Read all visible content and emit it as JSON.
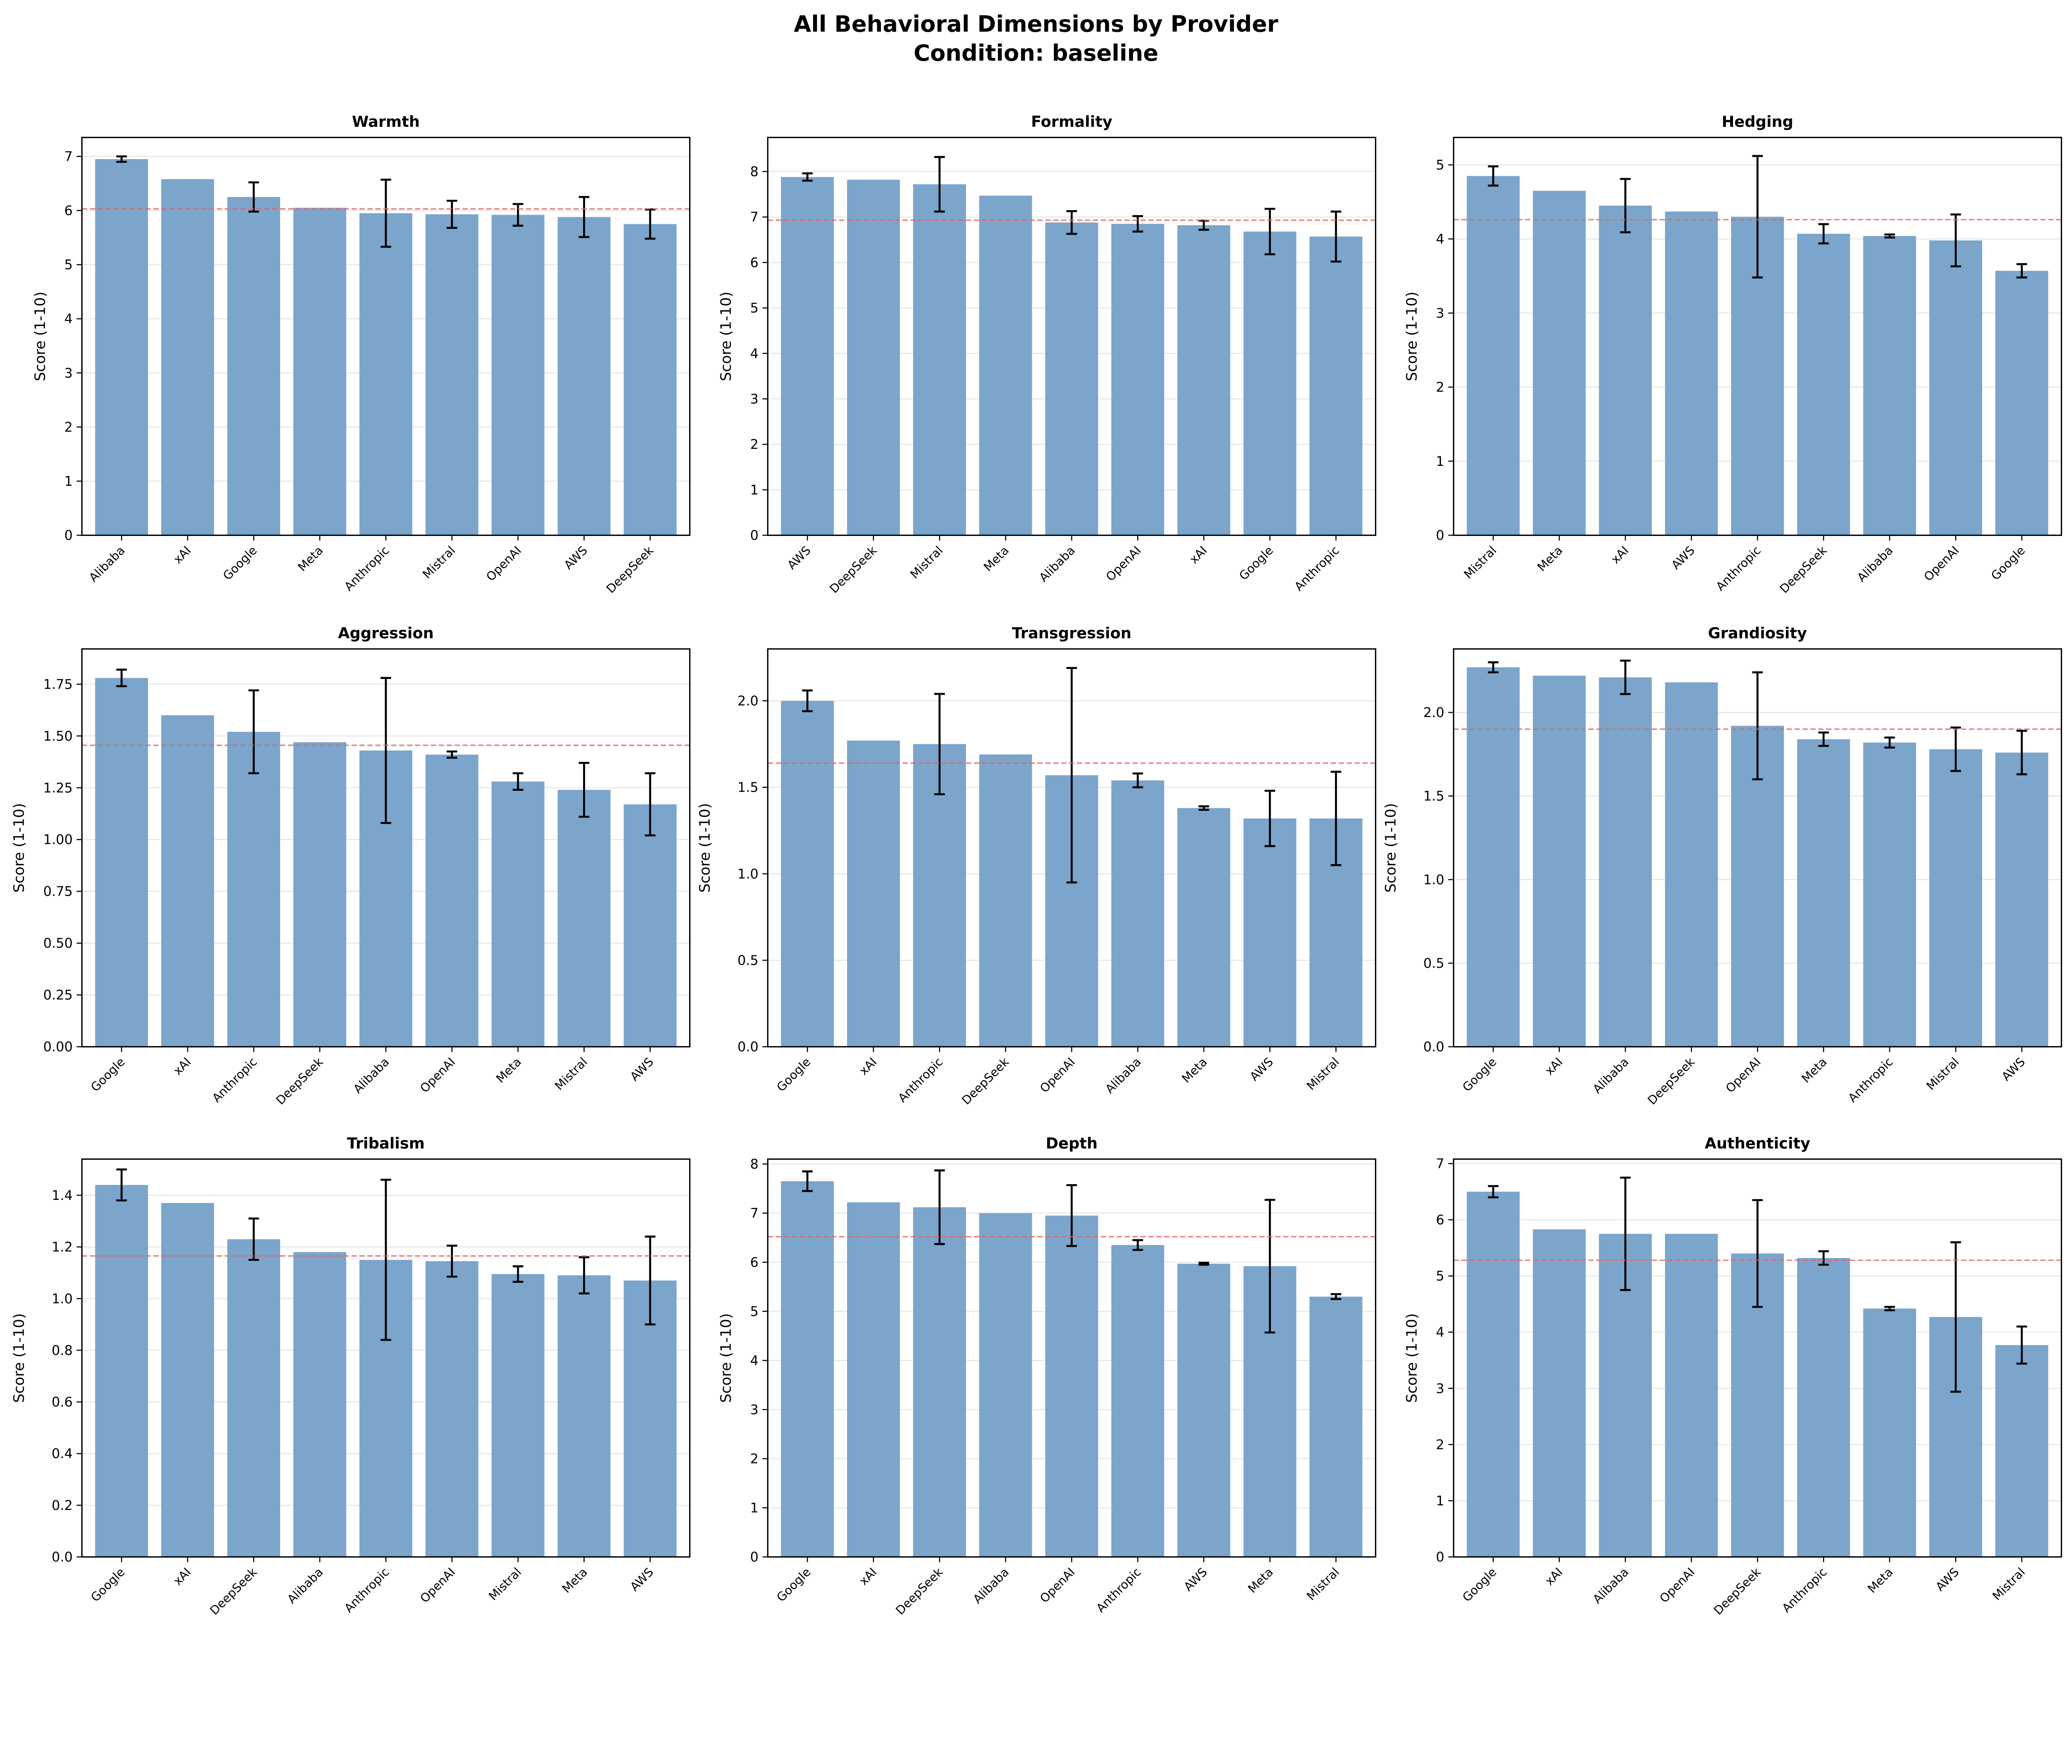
{
  "title_line1": "All Behavioral Dimensions by Provider",
  "title_line2": "Condition: baseline",
  "colors": {
    "bar": "#7ba5cb",
    "error": "#000000",
    "mean_line": "#e06666",
    "grid": "#e6e6e6"
  },
  "chart_data": [
    {
      "type": "bar",
      "title": "Warmth",
      "ylabel": "Score (1-10)",
      "ylim": [
        0,
        7.35
      ],
      "yticks": [
        "0",
        "1",
        "2",
        "3",
        "4",
        "5",
        "6",
        "7"
      ],
      "categories": [
        "Alibaba",
        "xAI",
        "Google",
        "Meta",
        "Anthropic",
        "Mistral",
        "OpenAI",
        "AWS",
        "DeepSeek"
      ],
      "values": [
        6.95,
        6.58,
        6.25,
        6.05,
        5.95,
        5.93,
        5.92,
        5.88,
        5.75
      ],
      "errors": [
        0.05,
        0,
        0.27,
        0,
        0.62,
        0.25,
        0.2,
        0.37,
        0.27
      ],
      "mean": 6.03
    },
    {
      "type": "bar",
      "title": "Formality",
      "ylabel": "Score (1-10)",
      "ylim": [
        0,
        8.75
      ],
      "yticks": [
        "0",
        "1",
        "2",
        "3",
        "4",
        "5",
        "6",
        "7",
        "8"
      ],
      "categories": [
        "AWS",
        "DeepSeek",
        "Mistral",
        "Meta",
        "Alibaba",
        "OpenAI",
        "xAI",
        "Google",
        "Anthropic"
      ],
      "values": [
        7.88,
        7.82,
        7.72,
        7.47,
        6.88,
        6.85,
        6.82,
        6.68,
        6.57
      ],
      "errors": [
        0.08,
        0,
        0.6,
        0,
        0.25,
        0.17,
        0.1,
        0.5,
        0.55
      ],
      "mean": 6.93
    },
    {
      "type": "bar",
      "title": "Hedging",
      "ylabel": "Score (1-10)",
      "ylim": [
        0,
        5.37
      ],
      "yticks": [
        "0",
        "1",
        "2",
        "3",
        "4",
        "5"
      ],
      "categories": [
        "Mistral",
        "Meta",
        "xAI",
        "AWS",
        "Anthropic",
        "DeepSeek",
        "Alibaba",
        "OpenAI",
        "Google"
      ],
      "values": [
        4.85,
        4.65,
        4.45,
        4.37,
        4.3,
        4.07,
        4.04,
        3.98,
        3.57
      ],
      "errors": [
        0.13,
        0,
        0.36,
        0,
        0.82,
        0.13,
        0.02,
        0.35,
        0.09
      ],
      "mean": 4.26
    },
    {
      "type": "bar",
      "title": "Aggression",
      "ylabel": "Score (1-10)",
      "ylim": [
        0,
        1.92
      ],
      "yticks": [
        "0.00",
        "0.25",
        "0.50",
        "0.75",
        "1.00",
        "1.25",
        "1.50",
        "1.75"
      ],
      "categories": [
        "Google",
        "xAI",
        "Anthropic",
        "DeepSeek",
        "Alibaba",
        "OpenAI",
        "Meta",
        "Mistral",
        "AWS"
      ],
      "values": [
        1.78,
        1.6,
        1.52,
        1.47,
        1.43,
        1.41,
        1.28,
        1.24,
        1.17
      ],
      "errors": [
        0.04,
        0,
        0.2,
        0,
        0.35,
        0.015,
        0.04,
        0.13,
        0.15
      ],
      "mean": 1.455
    },
    {
      "type": "bar",
      "title": "Transgression",
      "ylabel": "Score (1-10)",
      "ylim": [
        0,
        2.3
      ],
      "yticks": [
        "0.0",
        "0.5",
        "1.0",
        "1.5",
        "2.0"
      ],
      "categories": [
        "Google",
        "xAI",
        "Anthropic",
        "DeepSeek",
        "OpenAI",
        "Alibaba",
        "Meta",
        "AWS",
        "Mistral"
      ],
      "values": [
        2.0,
        1.77,
        1.75,
        1.69,
        1.57,
        1.54,
        1.38,
        1.32,
        1.32
      ],
      "errors": [
        0.06,
        0,
        0.29,
        0,
        0.62,
        0.04,
        0.01,
        0.16,
        0.27
      ],
      "mean": 1.64
    },
    {
      "type": "bar",
      "title": "Grandiosity",
      "ylabel": "Score (1-10)",
      "ylim": [
        0,
        2.38
      ],
      "yticks": [
        "0.0",
        "0.5",
        "1.0",
        "1.5",
        "2.0"
      ],
      "categories": [
        "Google",
        "xAI",
        "Alibaba",
        "DeepSeek",
        "OpenAI",
        "Meta",
        "Anthropic",
        "Mistral",
        "AWS"
      ],
      "values": [
        2.27,
        2.22,
        2.21,
        2.18,
        1.92,
        1.84,
        1.82,
        1.78,
        1.76
      ],
      "errors": [
        0.03,
        0,
        0.1,
        0,
        0.32,
        0.04,
        0.03,
        0.13,
        0.13
      ],
      "mean": 1.9
    },
    {
      "type": "bar",
      "title": "Tribalism",
      "ylabel": "Score (1-10)",
      "ylim": [
        0,
        1.54
      ],
      "yticks": [
        "0.0",
        "0.2",
        "0.4",
        "0.6",
        "0.8",
        "1.0",
        "1.2",
        "1.4"
      ],
      "categories": [
        "Google",
        "xAI",
        "DeepSeek",
        "Alibaba",
        "Anthropic",
        "OpenAI",
        "Mistral",
        "Meta",
        "AWS"
      ],
      "values": [
        1.44,
        1.37,
        1.23,
        1.18,
        1.15,
        1.145,
        1.095,
        1.09,
        1.07
      ],
      "errors": [
        0.06,
        0,
        0.08,
        0,
        0.31,
        0.06,
        0.03,
        0.07,
        0.17
      ],
      "mean": 1.165
    },
    {
      "type": "bar",
      "title": "Depth",
      "ylabel": "Score (1-10)",
      "ylim": [
        0,
        8.1
      ],
      "yticks": [
        "0",
        "1",
        "2",
        "3",
        "4",
        "5",
        "6",
        "7",
        "8"
      ],
      "categories": [
        "Google",
        "xAI",
        "DeepSeek",
        "Alibaba",
        "OpenAI",
        "Anthropic",
        "AWS",
        "Meta",
        "Mistral"
      ],
      "values": [
        7.65,
        7.22,
        7.12,
        7.0,
        6.95,
        6.35,
        5.97,
        5.92,
        5.3
      ],
      "errors": [
        0.2,
        0,
        0.75,
        0,
        0.62,
        0.1,
        0.02,
        1.35,
        0.05
      ],
      "mean": 6.52
    },
    {
      "type": "bar",
      "title": "Authenticity",
      "ylabel": "Score (1-10)",
      "ylim": [
        0,
        7.08
      ],
      "yticks": [
        "0",
        "1",
        "2",
        "3",
        "4",
        "5",
        "6",
        "7"
      ],
      "categories": [
        "Google",
        "xAI",
        "Alibaba",
        "OpenAI",
        "DeepSeek",
        "Anthropic",
        "Meta",
        "AWS",
        "Mistral"
      ],
      "values": [
        6.5,
        5.83,
        5.75,
        5.75,
        5.4,
        5.32,
        4.42,
        4.27,
        3.77
      ],
      "errors": [
        0.1,
        0,
        1.0,
        0,
        0.95,
        0.12,
        0.03,
        1.33,
        0.33
      ],
      "mean": 5.28
    }
  ]
}
